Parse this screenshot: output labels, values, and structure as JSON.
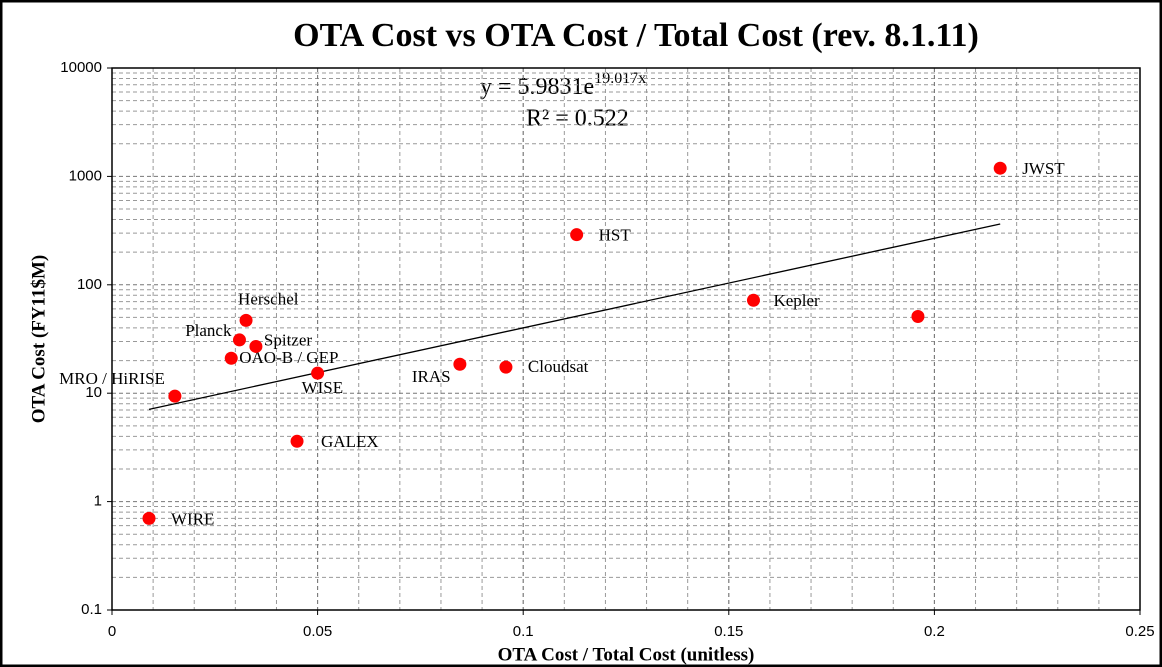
{
  "chart_data": {
    "type": "scatter",
    "title": "OTA Cost vs OTA Cost / Total Cost (rev. 8.1.11)",
    "x_label": "OTA Cost / Total Cost (unitless)",
    "y_label": "OTA Cost (FY11$M)",
    "annotations": {
      "equation": "y = 5.9831e",
      "exponent": "19.017x",
      "r_squared": "R² = 0.522"
    },
    "categories": [
      "WIRE",
      "MRO / HiRISE",
      "OAO-B / GEP",
      "Planck",
      "Herschel",
      "Spitzer",
      "WISE",
      "GALEX",
      "IRAS",
      "Cloudsat",
      "HST",
      "Kepler",
      null,
      "JWST"
    ],
    "x": [
      0.009,
      0.0153,
      0.029,
      0.031,
      0.0326,
      0.035,
      0.05,
      0.045,
      0.0846,
      0.0958,
      0.113,
      0.156,
      0.196,
      0.216
    ],
    "values": [
      0.7,
      9.4,
      21,
      31,
      47,
      27,
      15.3,
      3.6,
      18.5,
      17.4,
      290,
      72,
      51,
      1190
    ],
    "color": "#ff0000",
    "trendline": {
      "x": [
        0.009,
        0.216
      ],
      "y": [
        7.1,
        364
      ],
      "color": "#000000"
    },
    "xlim": [
      0,
      0.25
    ],
    "xticks": [
      0,
      0.05,
      0.1,
      0.15,
      0.2,
      0.25
    ],
    "ylim": [
      0.1,
      10000
    ],
    "yticks": [
      0.1,
      1,
      10,
      100,
      1000,
      10000
    ],
    "y_scale": "log",
    "grid": true,
    "minor_grid": true
  }
}
